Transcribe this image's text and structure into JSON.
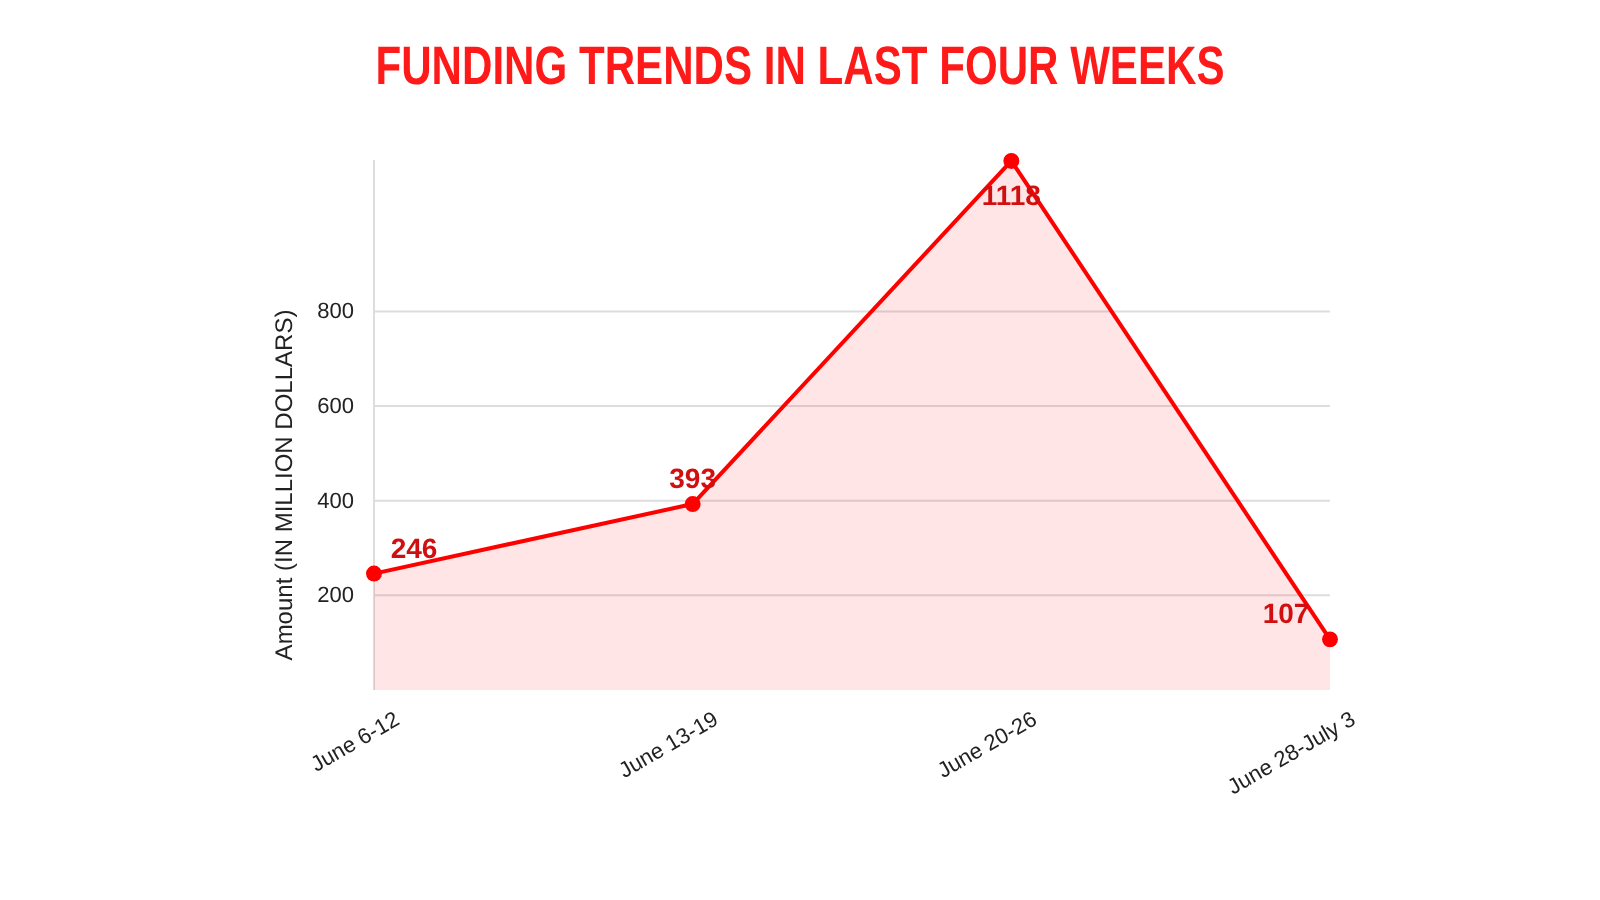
{
  "chart_data": {
    "type": "area",
    "title": "FUNDING TRENDS IN LAST FOUR WEEKS",
    "ylabel": "Amount (IN MILLION DOLLARS)",
    "categories": [
      "June 6-12",
      "June 13-19",
      "June 20-26",
      "June 28-July 3"
    ],
    "series": [
      {
        "color": "#ff0000",
        "values": [
          246,
          393,
          1118,
          107
        ]
      }
    ],
    "ylim": [
      0,
      1120
    ],
    "yticks": [
      200,
      400,
      600,
      800
    ],
    "grid": "y",
    "data_labels": true,
    "marker": "circle",
    "line_style": "solid"
  }
}
